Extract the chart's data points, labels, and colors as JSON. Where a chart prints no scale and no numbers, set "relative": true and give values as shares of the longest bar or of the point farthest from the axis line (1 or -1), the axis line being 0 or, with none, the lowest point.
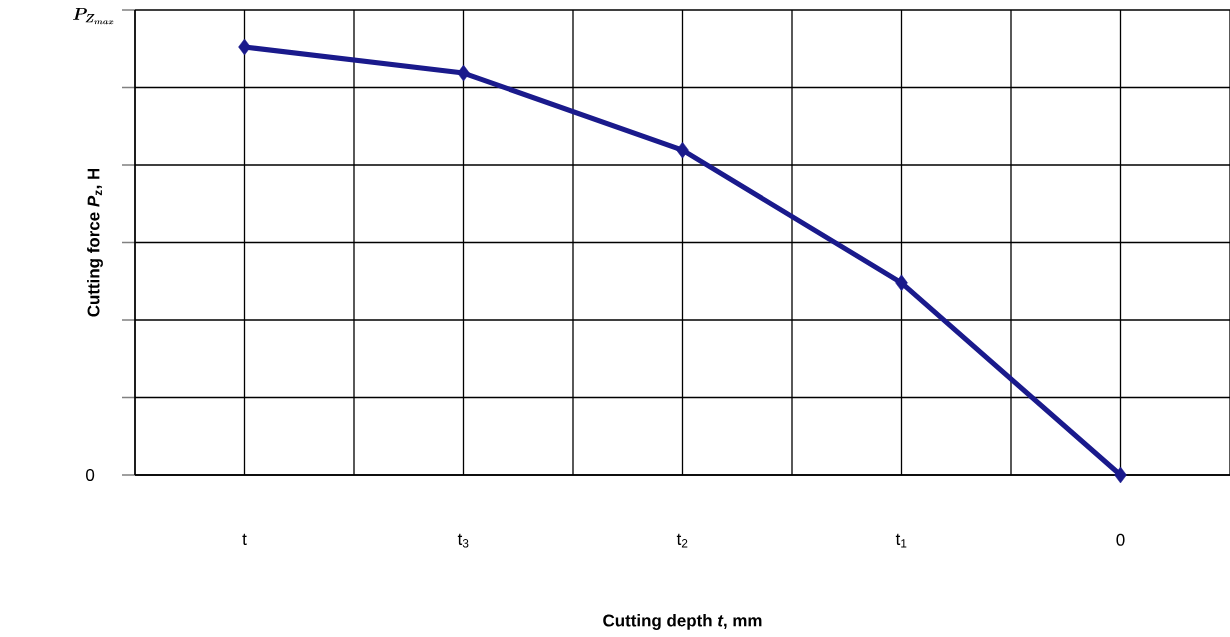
{
  "chart_data": {
    "type": "line",
    "relative": true,
    "xlabel": "Cutting depth *t*, mm",
    "ylabel": "Cutting force *P*$_{z}$, H",
    "categories": [
      "t",
      "t$_{3}$",
      "t$_{2}$",
      "t$_{1}$",
      "0"
    ],
    "series": [
      {
        "color": "#1a1a8c",
        "values": [
          1,
          0.939,
          0.759,
          0.449,
          0
        ]
      }
    ],
    "annotations": [
      "0",
      "P_{Z_{max}}"
    ],
    "grid": true,
    "marker": "diamond",
    "line_style": "solid"
  }
}
